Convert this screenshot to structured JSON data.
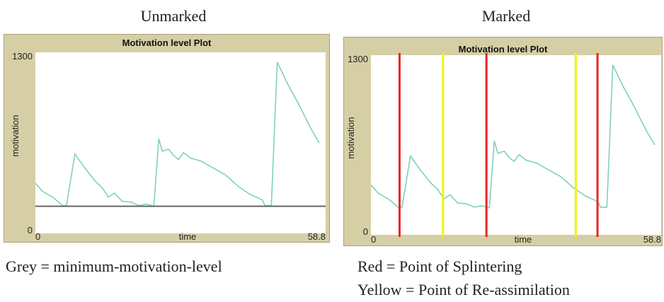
{
  "headings": {
    "left": "Unmarked",
    "right": "Marked"
  },
  "captions": {
    "left": "Grey = minimum-motivation-level",
    "right_line1": "Red = Point of Splintering",
    "right_line2": "Yellow = Point of Re-assimilation"
  },
  "chart_data": [
    {
      "type": "line",
      "title": "Motivation level Plot",
      "xlabel": "time",
      "ylabel": "motivation",
      "xlim": [
        0,
        58.8
      ],
      "ylim": [
        0,
        1300
      ],
      "x_tick_labels": [
        "0",
        "58.8"
      ],
      "y_tick_labels": [
        "0",
        "1300"
      ],
      "series": [
        {
          "color": "#7fd1bf",
          "x": [
            0,
            1.5,
            3.5,
            5.5,
            6.3,
            8.0,
            10.0,
            12.0,
            13.5,
            14.8,
            16.0,
            17.6,
            19.3,
            21.0,
            22.5,
            24.0,
            25.0,
            25.7,
            27.0,
            28.0,
            29.0,
            30.0,
            31.5,
            33.5,
            36.0,
            38.5,
            41.0,
            43.5,
            46.0,
            46.5,
            47.8,
            49.0,
            51.0,
            53.0,
            55.0,
            56.0,
            57.5
          ],
          "y": [
            360,
            300,
            260,
            200,
            200,
            570,
            470,
            380,
            330,
            260,
            290,
            230,
            225,
            200,
            210,
            195,
            680,
            590,
            605,
            560,
            530,
            580,
            540,
            520,
            470,
            420,
            340,
            280,
            240,
            200,
            200,
            1230,
            1080,
            950,
            810,
            740,
            650
          ]
        },
        {
          "name": "minimum-motivation-level",
          "color": "#666666",
          "x": [
            0,
            58.8
          ],
          "y": [
            195,
            195
          ]
        }
      ]
    },
    {
      "type": "line",
      "title": "Motivation level Plot",
      "xlabel": "time",
      "ylabel": "motivation",
      "xlim": [
        0,
        58.8
      ],
      "ylim": [
        0,
        1300
      ],
      "x_tick_labels": [
        "0",
        "58.8"
      ],
      "y_tick_labels": [
        "0",
        "1300"
      ],
      "series": [
        {
          "color": "#7fd1bf",
          "x": [
            0,
            1.5,
            3.5,
            5.5,
            6.3,
            8.0,
            10.0,
            12.0,
            13.5,
            14.8,
            16.0,
            17.6,
            19.3,
            21.0,
            22.5,
            24.0,
            25.0,
            25.7,
            27.0,
            28.0,
            29.0,
            30.0,
            31.5,
            33.5,
            36.0,
            38.5,
            41.0,
            43.5,
            46.0,
            46.5,
            47.8,
            49.0,
            51.0,
            53.0,
            55.0,
            56.0,
            57.5
          ],
          "y": [
            360,
            300,
            260,
            200,
            200,
            570,
            470,
            380,
            330,
            260,
            290,
            230,
            225,
            200,
            210,
            195,
            680,
            590,
            605,
            560,
            530,
            580,
            540,
            520,
            470,
            420,
            340,
            280,
            240,
            200,
            200,
            1230,
            1080,
            950,
            810,
            740,
            650
          ]
        }
      ],
      "vertical_markers": [
        {
          "x": 5.8,
          "color": "#ee2222",
          "meaning": "Point of Splintering"
        },
        {
          "x": 14.6,
          "color": "#f2f20a",
          "meaning": "Point of Re-assimilation"
        },
        {
          "x": 23.4,
          "color": "#ee2222",
          "meaning": "Point of Splintering"
        },
        {
          "x": 41.5,
          "color": "#f2f20a",
          "meaning": "Point of Re-assimilation"
        },
        {
          "x": 45.9,
          "color": "#ee2222",
          "meaning": "Point of Splintering"
        }
      ]
    }
  ]
}
